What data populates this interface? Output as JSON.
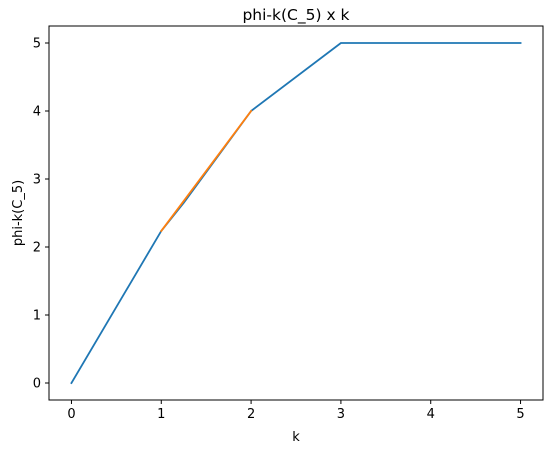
{
  "chart_data": {
    "type": "line",
    "title": "phi-k(C_5) x k",
    "xlabel": "k",
    "ylabel": "phi-k(C_5)",
    "xlim": [
      -0.25,
      5.25
    ],
    "ylim": [
      -0.25,
      5.25
    ],
    "x_ticks": [
      0,
      1,
      2,
      3,
      4,
      5
    ],
    "y_ticks": [
      0,
      1,
      2,
      3,
      4,
      5
    ],
    "x_tick_labels": [
      "0",
      "1",
      "2",
      "3",
      "4",
      "5"
    ],
    "y_tick_labels": [
      "0",
      "1",
      "2",
      "3",
      "4",
      "5"
    ],
    "grid": false,
    "legend": "none",
    "series": [
      {
        "color": "#1f77b4",
        "x": [
          0,
          1,
          1.25,
          1.5,
          1.75,
          2,
          3,
          4,
          5
        ],
        "y": [
          0,
          2.236,
          2.65,
          3.1,
          3.55,
          4,
          5,
          5,
          5
        ]
      },
      {
        "color": "#ff7f0e",
        "x": [
          1,
          2
        ],
        "y": [
          2.236,
          4
        ]
      }
    ]
  }
}
